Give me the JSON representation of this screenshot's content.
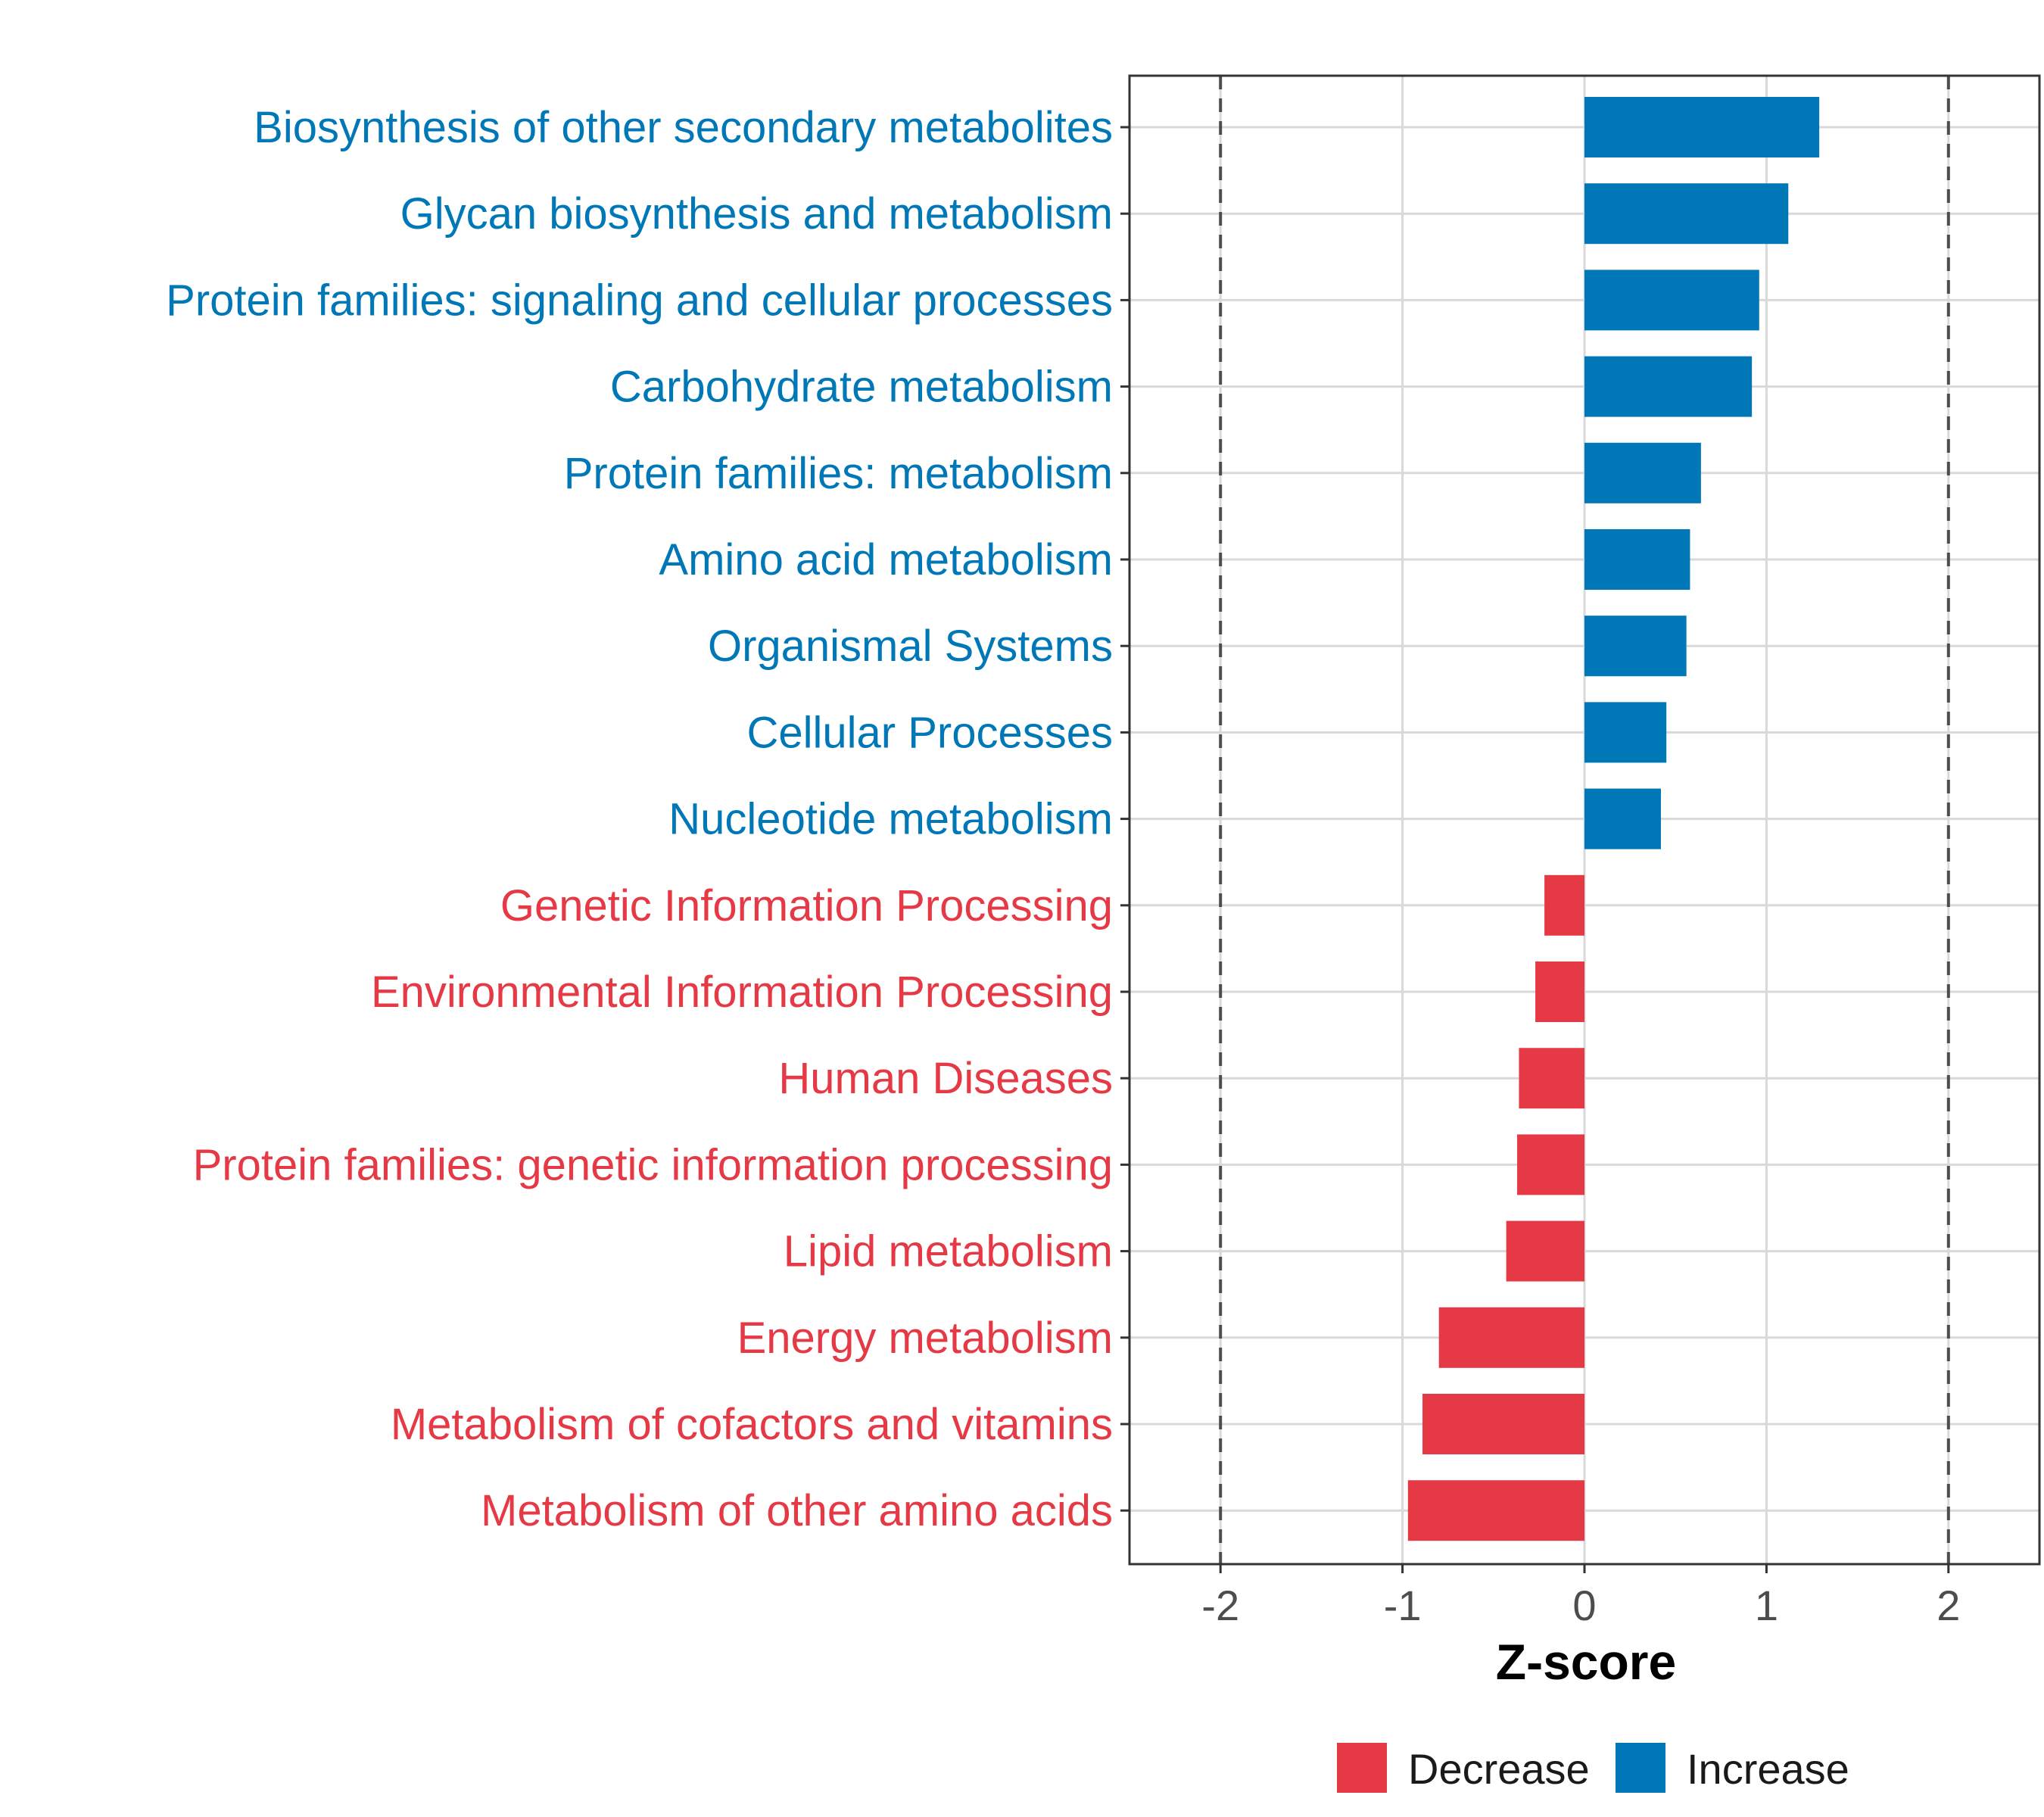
{
  "colors": {
    "increase": "#0077B6",
    "decrease": "#E63946",
    "grid": "#D9D9D9",
    "panel_border": "#333333",
    "ref_line": "#4D4D4D"
  },
  "chart_data": {
    "type": "bar",
    "orientation": "horizontal",
    "title": "",
    "xlabel": "Z-score",
    "ylabel": "",
    "xlim": [
      -2.5,
      2.5
    ],
    "x_ticks": [
      -2,
      -1,
      0,
      1,
      2
    ],
    "x_tick_labels": [
      "-2",
      "-1",
      "0",
      "1",
      "2"
    ],
    "reference_lines": [
      -2,
      2
    ],
    "grid": true,
    "categories": [
      "Biosynthesis of other secondary metabolites",
      "Glycan biosynthesis and metabolism",
      "Protein families: signaling and cellular processes",
      "Carbohydrate metabolism",
      "Protein families: metabolism",
      "Amino acid metabolism",
      "Organismal Systems",
      "Cellular Processes",
      "Nucleotide metabolism",
      "Genetic Information Processing",
      "Environmental Information Processing",
      "Human Diseases",
      "Protein families: genetic information processing",
      "Lipid metabolism",
      "Energy metabolism",
      "Metabolism of cofactors and vitamins",
      "Metabolism of other amino acids"
    ],
    "values": [
      1.29,
      1.12,
      0.96,
      0.92,
      0.64,
      0.58,
      0.56,
      0.45,
      0.42,
      -0.22,
      -0.27,
      -0.36,
      -0.37,
      -0.43,
      -0.8,
      -0.89,
      -0.97
    ],
    "groups": [
      "Increase",
      "Increase",
      "Increase",
      "Increase",
      "Increase",
      "Increase",
      "Increase",
      "Increase",
      "Increase",
      "Decrease",
      "Decrease",
      "Decrease",
      "Decrease",
      "Decrease",
      "Decrease",
      "Decrease",
      "Decrease"
    ],
    "legend": {
      "position": "bottom",
      "items": [
        {
          "label": "Decrease",
          "color": "#E63946"
        },
        {
          "label": "Increase",
          "color": "#0077B6"
        }
      ]
    }
  }
}
